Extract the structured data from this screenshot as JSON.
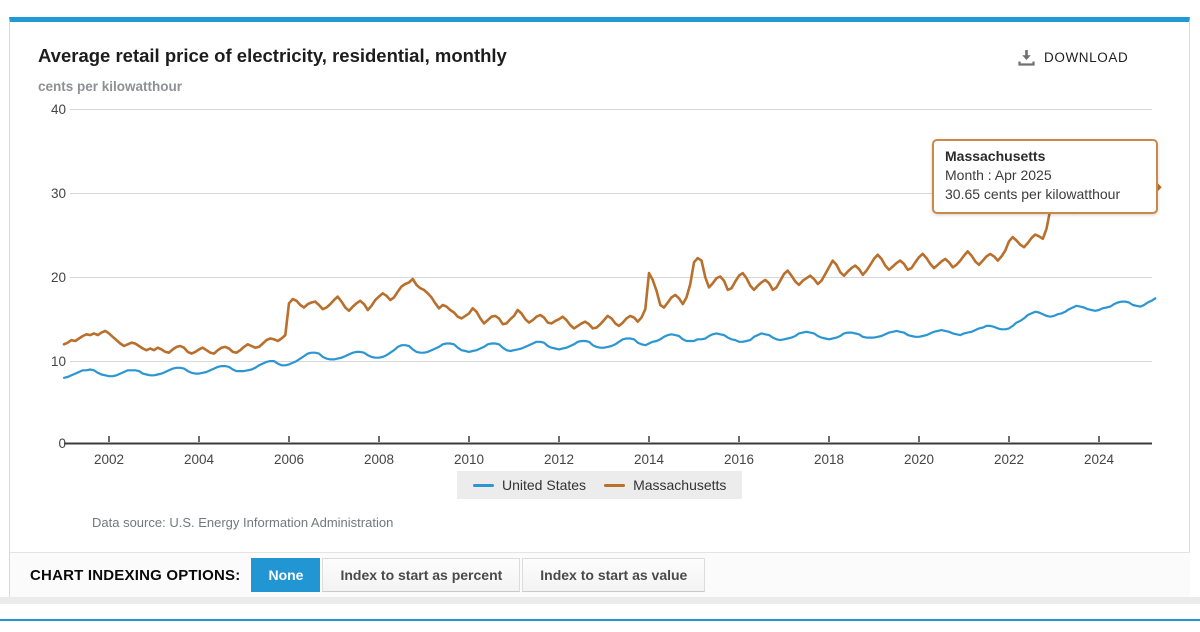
{
  "header": {
    "title": "Average retail price of electricity, residential, monthly",
    "download_label": "DOWNLOAD"
  },
  "tooltip": {
    "series": "Massachusetts",
    "line1": "Month : Apr 2025",
    "line2": "30.65 cents per kilowatthour"
  },
  "footer": {
    "data_source": "Data source: U.S. Energy Information Administration"
  },
  "indexing": {
    "label": "CHART INDEXING OPTIONS:",
    "options": [
      {
        "label": "None",
        "active": true
      },
      {
        "label": "Index to start as percent",
        "active": false
      },
      {
        "label": "Index to start as value",
        "active": false
      }
    ]
  },
  "colors": {
    "accent_blue": "#1f9ad6",
    "active_button_blue": "#2196d3",
    "us_line": "#2b96d2",
    "ma_line": "#b8702c",
    "tooltip_border": "#c9894b",
    "grid": "#d8d8d8",
    "axis": "#3c3c3c"
  },
  "chart_data": {
    "type": "line",
    "title": "Average retail price of electricity, residential, monthly",
    "xlabel": "",
    "ylabel": "cents per kilowatthour",
    "ylim": [
      0,
      40
    ],
    "grid": true,
    "legend_position": "bottom-center",
    "frequency": "monthly",
    "x_start": "Jan 2001",
    "x_end": "Apr 2025",
    "yticks": [
      "40",
      "30",
      "20",
      "10",
      "0"
    ],
    "xticks": [
      "2002",
      "2004",
      "2006",
      "2008",
      "2010",
      "2012",
      "2014",
      "2016",
      "2018",
      "2020",
      "2022",
      "2024"
    ],
    "series": [
      {
        "name": "United States",
        "color": "#2b96d2",
        "values": [
          7.9,
          8.0,
          8.2,
          8.4,
          8.6,
          8.8,
          8.8,
          8.9,
          8.8,
          8.5,
          8.3,
          8.2,
          8.1,
          8.1,
          8.2,
          8.4,
          8.6,
          8.8,
          8.8,
          8.8,
          8.7,
          8.4,
          8.3,
          8.2,
          8.2,
          8.3,
          8.4,
          8.6,
          8.8,
          9.0,
          9.1,
          9.1,
          9.0,
          8.7,
          8.5,
          8.4,
          8.4,
          8.5,
          8.6,
          8.8,
          9.0,
          9.2,
          9.3,
          9.3,
          9.2,
          8.9,
          8.7,
          8.7,
          8.7,
          8.8,
          8.9,
          9.1,
          9.4,
          9.6,
          9.8,
          9.9,
          9.9,
          9.6,
          9.4,
          9.4,
          9.5,
          9.7,
          9.9,
          10.2,
          10.5,
          10.8,
          10.9,
          10.9,
          10.8,
          10.4,
          10.2,
          10.1,
          10.1,
          10.2,
          10.3,
          10.5,
          10.7,
          10.9,
          11.0,
          11.0,
          10.9,
          10.6,
          10.4,
          10.3,
          10.3,
          10.4,
          10.6,
          10.9,
          11.2,
          11.6,
          11.8,
          11.8,
          11.7,
          11.3,
          11.0,
          10.9,
          10.9,
          11.0,
          11.2,
          11.4,
          11.6,
          11.9,
          12.0,
          12.0,
          11.9,
          11.5,
          11.2,
          11.1,
          11.0,
          11.1,
          11.2,
          11.4,
          11.6,
          11.9,
          12.0,
          12.0,
          11.9,
          11.5,
          11.2,
          11.1,
          11.2,
          11.3,
          11.4,
          11.6,
          11.8,
          12.0,
          12.2,
          12.2,
          12.1,
          11.7,
          11.5,
          11.4,
          11.3,
          11.4,
          11.5,
          11.7,
          11.9,
          12.2,
          12.3,
          12.3,
          12.2,
          11.8,
          11.6,
          11.5,
          11.5,
          11.6,
          11.7,
          11.9,
          12.2,
          12.5,
          12.6,
          12.6,
          12.5,
          12.1,
          11.9,
          11.8,
          12.0,
          12.2,
          12.3,
          12.5,
          12.8,
          13.0,
          13.1,
          13.0,
          12.9,
          12.5,
          12.3,
          12.3,
          12.3,
          12.5,
          12.5,
          12.6,
          12.9,
          13.1,
          13.2,
          13.1,
          13.0,
          12.7,
          12.5,
          12.4,
          12.2,
          12.2,
          12.3,
          12.4,
          12.8,
          13.0,
          13.2,
          13.1,
          13.0,
          12.7,
          12.5,
          12.4,
          12.5,
          12.6,
          12.7,
          12.9,
          13.2,
          13.3,
          13.4,
          13.3,
          13.2,
          12.9,
          12.7,
          12.6,
          12.5,
          12.6,
          12.7,
          12.9,
          13.2,
          13.3,
          13.3,
          13.2,
          13.1,
          12.8,
          12.7,
          12.7,
          12.7,
          12.8,
          12.9,
          13.1,
          13.3,
          13.4,
          13.5,
          13.4,
          13.3,
          13.0,
          12.9,
          12.8,
          12.8,
          12.9,
          13.0,
          13.2,
          13.4,
          13.5,
          13.6,
          13.5,
          13.4,
          13.2,
          13.1,
          13.0,
          13.2,
          13.3,
          13.4,
          13.6,
          13.8,
          13.9,
          14.1,
          14.1,
          14.0,
          13.8,
          13.7,
          13.7,
          13.8,
          14.1,
          14.5,
          14.7,
          15.0,
          15.4,
          15.6,
          15.8,
          15.7,
          15.5,
          15.3,
          15.2,
          15.3,
          15.5,
          15.6,
          15.8,
          16.1,
          16.3,
          16.5,
          16.4,
          16.3,
          16.1,
          16.0,
          15.9,
          16.0,
          16.2,
          16.3,
          16.4,
          16.7,
          16.9,
          17.0,
          17.0,
          16.9,
          16.6,
          16.5,
          16.4,
          16.6,
          16.9,
          17.1,
          17.4
        ]
      },
      {
        "name": "Massachusetts",
        "color": "#b8702c",
        "values": [
          11.9,
          12.1,
          12.4,
          12.3,
          12.6,
          12.9,
          13.1,
          13.0,
          13.2,
          13.0,
          13.3,
          13.5,
          13.2,
          12.8,
          12.4,
          12.0,
          11.7,
          11.9,
          12.1,
          12.0,
          11.7,
          11.4,
          11.2,
          11.4,
          11.2,
          11.5,
          11.3,
          11.0,
          10.9,
          11.3,
          11.6,
          11.7,
          11.5,
          11.0,
          10.8,
          11.0,
          11.3,
          11.5,
          11.2,
          10.9,
          10.8,
          11.2,
          11.5,
          11.6,
          11.4,
          11.0,
          10.9,
          11.2,
          11.6,
          11.9,
          11.7,
          11.5,
          11.6,
          12.0,
          12.4,
          12.6,
          12.5,
          12.3,
          12.6,
          13.0,
          16.8,
          17.3,
          17.1,
          16.6,
          16.3,
          16.7,
          16.9,
          17.0,
          16.6,
          16.1,
          16.3,
          16.7,
          17.2,
          17.6,
          17.0,
          16.3,
          15.9,
          16.4,
          16.8,
          17.1,
          16.7,
          16.0,
          16.5,
          17.2,
          17.6,
          18.0,
          17.7,
          17.2,
          17.5,
          18.2,
          18.8,
          19.1,
          19.3,
          19.7,
          19.0,
          18.6,
          18.4,
          18.0,
          17.5,
          16.8,
          16.2,
          16.6,
          16.4,
          16.0,
          15.7,
          15.2,
          15.0,
          15.3,
          15.6,
          16.2,
          15.8,
          15.0,
          14.4,
          14.8,
          15.2,
          15.3,
          15.0,
          14.3,
          14.4,
          14.9,
          15.3,
          16.0,
          15.6,
          14.9,
          14.5,
          14.8,
          15.2,
          15.4,
          15.1,
          14.5,
          14.4,
          14.7,
          14.9,
          15.2,
          14.8,
          14.2,
          13.8,
          14.1,
          14.4,
          14.6,
          14.3,
          13.8,
          13.9,
          14.3,
          14.8,
          15.3,
          15.0,
          14.4,
          14.1,
          14.5,
          15.0,
          15.3,
          15.1,
          14.6,
          15.1,
          16.1,
          20.4,
          19.6,
          18.3,
          16.6,
          16.3,
          16.9,
          17.5,
          17.8,
          17.4,
          16.7,
          17.5,
          19.1,
          21.7,
          22.2,
          21.9,
          19.9,
          18.7,
          19.2,
          19.8,
          20.0,
          19.5,
          18.4,
          18.6,
          19.4,
          20.1,
          20.4,
          19.8,
          18.9,
          18.4,
          18.9,
          19.3,
          19.6,
          19.2,
          18.4,
          18.7,
          19.5,
          20.3,
          20.7,
          20.1,
          19.4,
          19.0,
          19.5,
          19.8,
          20.1,
          19.7,
          19.1,
          19.5,
          20.3,
          21.1,
          21.9,
          21.4,
          20.5,
          20.1,
          20.6,
          21.0,
          21.3,
          20.9,
          20.2,
          20.7,
          21.4,
          22.1,
          22.6,
          22.1,
          21.3,
          20.8,
          21.2,
          21.6,
          21.9,
          21.5,
          20.8,
          21.0,
          21.7,
          22.3,
          22.7,
          22.2,
          21.5,
          21.0,
          21.4,
          21.8,
          22.1,
          21.7,
          21.1,
          21.4,
          21.9,
          22.5,
          23.0,
          22.5,
          21.8,
          21.4,
          21.9,
          22.4,
          22.7,
          22.4,
          21.9,
          22.4,
          23.1,
          24.2,
          24.7,
          24.3,
          23.8,
          23.5,
          24.0,
          24.6,
          25.0,
          24.8,
          24.5,
          25.7,
          28.0,
          29.6,
          31.3,
          31.6,
          29.1,
          27.8,
          27.6,
          28.1,
          28.5,
          28.2,
          27.9,
          28.7,
          29.5,
          30.0,
          30.9,
          30.4,
          29.4,
          28.7,
          28.9,
          29.3,
          29.6,
          29.4,
          29.0,
          29.7,
          30.4,
          30.5,
          31.1,
          30.6,
          30.65
        ]
      }
    ],
    "last_point": {
      "series": "Massachusetts",
      "x": "Apr 2025",
      "y": 30.65
    }
  }
}
